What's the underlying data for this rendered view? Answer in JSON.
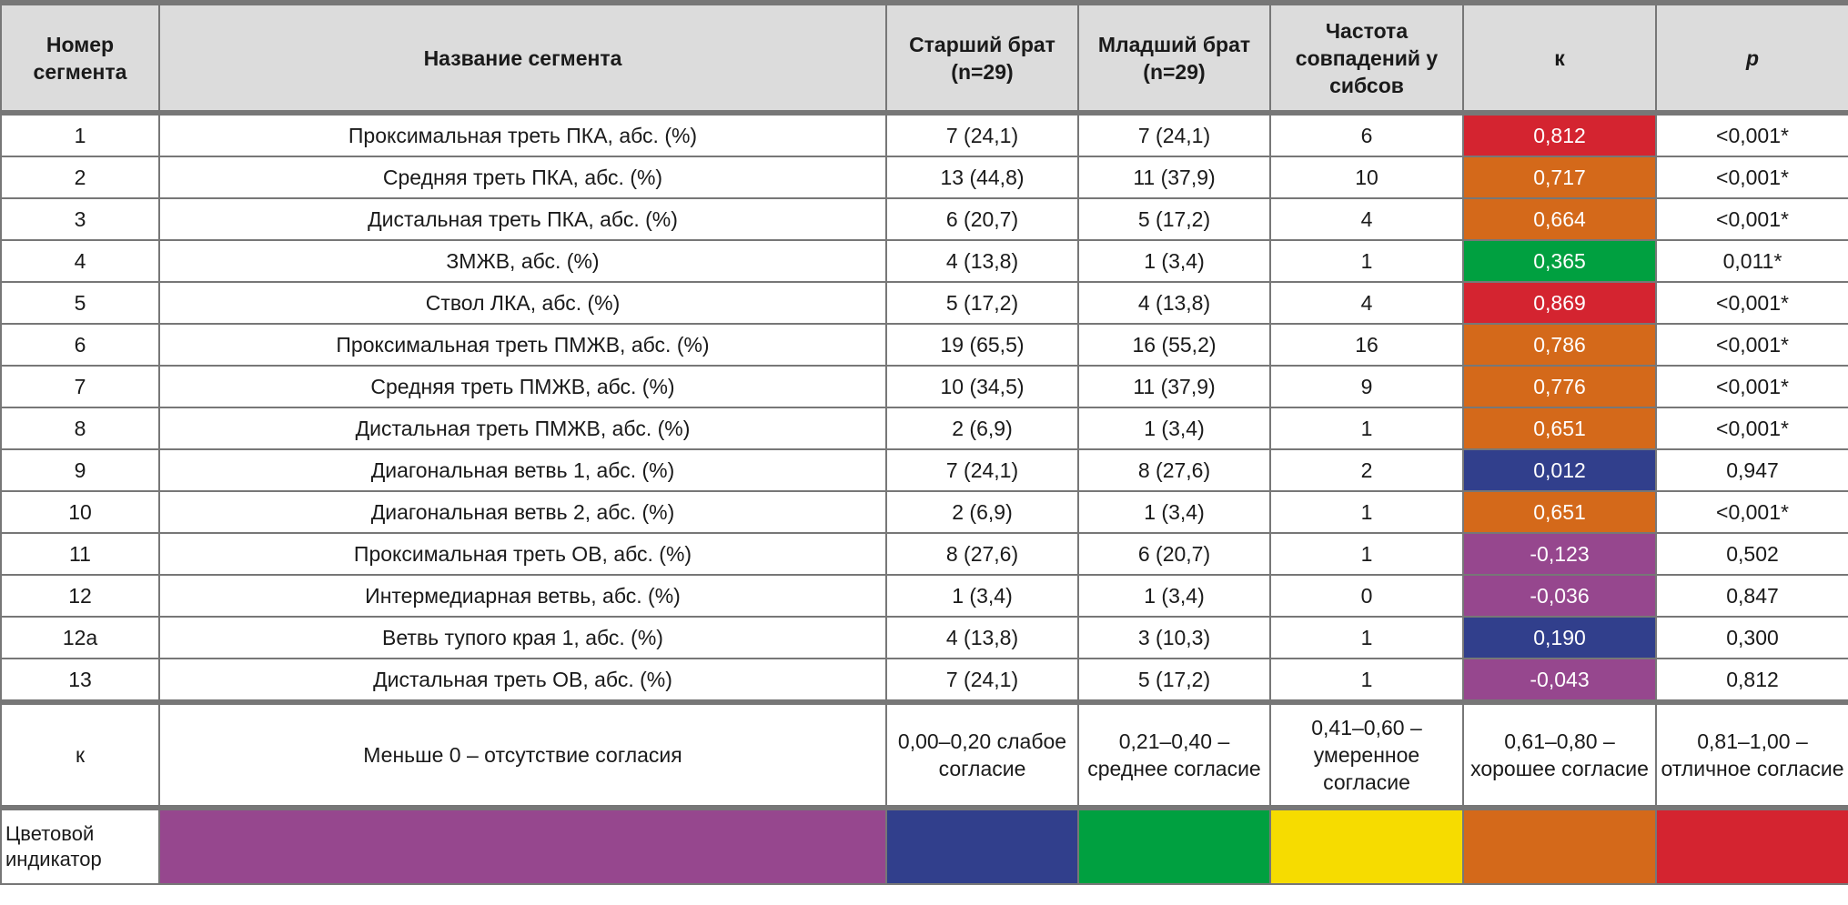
{
  "headers": [
    "Номер сегмента",
    "Название сегмента",
    "Старший брат (n=29)",
    "Младший брат (n=29)",
    "Частота совпадений у сибсов",
    "к",
    "p"
  ],
  "colors": {
    "red": "#d42430",
    "orange": "#d4691a",
    "green": "#00a040",
    "blue": "#313f8c",
    "purple": "#96478e",
    "yellow": "#f6dc00"
  },
  "rows": [
    {
      "n": "1",
      "name": "Проксимальная треть ПКА, абс. (%)",
      "older": "7 (24,1)",
      "younger": "7 (24,1)",
      "freq": "6",
      "k": "0,812",
      "p": "<0,001*",
      "color": "red"
    },
    {
      "n": "2",
      "name": "Средняя треть ПКА, абс. (%)",
      "older": "13 (44,8)",
      "younger": "11 (37,9)",
      "freq": "10",
      "k": "0,717",
      "p": "<0,001*",
      "color": "orange"
    },
    {
      "n": "3",
      "name": "Дистальная треть ПКА, абс. (%)",
      "older": "6 (20,7)",
      "younger": "5 (17,2)",
      "freq": "4",
      "k": "0,664",
      "p": "<0,001*",
      "color": "orange"
    },
    {
      "n": "4",
      "name": "ЗМЖВ, абс. (%)",
      "older": "4 (13,8)",
      "younger": "1 (3,4)",
      "freq": "1",
      "k": "0,365",
      "p": "0,011*",
      "color": "green"
    },
    {
      "n": "5",
      "name": "Ствол ЛКА, абс. (%)",
      "older": "5 (17,2)",
      "younger": "4 (13,8)",
      "freq": "4",
      "k": "0,869",
      "p": "<0,001*",
      "color": "red"
    },
    {
      "n": "6",
      "name": "Проксимальная треть ПМЖВ, абс. (%)",
      "older": "19 (65,5)",
      "younger": "16 (55,2)",
      "freq": "16",
      "k": "0,786",
      "p": "<0,001*",
      "color": "orange"
    },
    {
      "n": "7",
      "name": "Средняя треть ПМЖВ, абс. (%)",
      "older": "10 (34,5)",
      "younger": "11 (37,9)",
      "freq": "9",
      "k": "0,776",
      "p": "<0,001*",
      "color": "orange"
    },
    {
      "n": "8",
      "name": "Дистальная треть ПМЖВ, абс. (%)",
      "older": "2 (6,9)",
      "younger": "1 (3,4)",
      "freq": "1",
      "k": "0,651",
      "p": "<0,001*",
      "color": "orange"
    },
    {
      "n": "9",
      "name": "Диагональная ветвь 1, абс. (%)",
      "older": "7 (24,1)",
      "younger": "8 (27,6)",
      "freq": "2",
      "k": "0,012",
      "p": "0,947",
      "color": "blue"
    },
    {
      "n": "10",
      "name": "Диагональная ветвь 2, абс. (%)",
      "older": "2 (6,9)",
      "younger": "1 (3,4)",
      "freq": "1",
      "k": "0,651",
      "p": "<0,001*",
      "color": "orange"
    },
    {
      "n": "11",
      "name": "Проксимальная треть ОВ, абс. (%)",
      "older": "8 (27,6)",
      "younger": "6 (20,7)",
      "freq": "1",
      "k": "-0,123",
      "p": "0,502",
      "color": "purple"
    },
    {
      "n": "12",
      "name": "Интермедиарная ветвь, абс. (%)",
      "older": "1 (3,4)",
      "younger": "1 (3,4)",
      "freq": "0",
      "k": "-0,036",
      "p": "0,847",
      "color": "purple"
    },
    {
      "n": "12a",
      "name": "Ветвь тупого края 1, абс. (%)",
      "older": "4 (13,8)",
      "younger": "3 (10,3)",
      "freq": "1",
      "k": "0,190",
      "p": "0,300",
      "color": "blue"
    },
    {
      "n": "13",
      "name": "Дистальная треть ОВ, абс. (%)",
      "older": "7 (24,1)",
      "younger": "5 (17,2)",
      "freq": "1",
      "k": "-0,043",
      "p": "0,812",
      "color": "purple"
    }
  ],
  "legend": {
    "label": "к",
    "items": [
      "Меньше 0 – отсутствие согласия",
      "0,00–0,20 слабое согласие",
      "0,21–0,40 – среднее согласие",
      "0,41–0,60 – умеренное согласие",
      "0,61–0,80 – хорошее согласие",
      "0,81–1,00 – отличное согласие"
    ]
  },
  "color_indicator": {
    "label": "Цветовой индикатор",
    "swatches": [
      "purple",
      "blue",
      "green",
      "yellow",
      "orange",
      "red"
    ]
  }
}
